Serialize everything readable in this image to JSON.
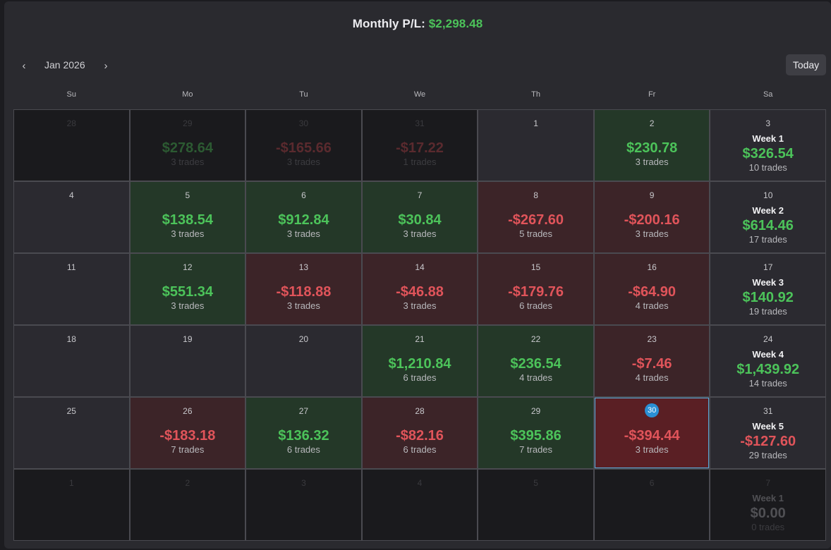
{
  "header": {
    "title_label": "Monthly P/L:",
    "title_amount": "$2,298.48"
  },
  "nav": {
    "month": "Jan 2026",
    "prev_icon": "‹",
    "next_icon": "›",
    "today_label": "Today"
  },
  "weekdays": [
    "Su",
    "Mo",
    "Tu",
    "We",
    "Th",
    "Fr",
    "Sa"
  ],
  "weeks": [
    {
      "days": [
        {
          "day": "28",
          "out": true,
          "amount": "",
          "trades": "",
          "tone": ""
        },
        {
          "day": "29",
          "out": true,
          "amount": "$278.64",
          "trades": "3 trades",
          "tone": "pos"
        },
        {
          "day": "30",
          "out": true,
          "amount": "-$165.66",
          "trades": "3 trades",
          "tone": "neg"
        },
        {
          "day": "31",
          "out": true,
          "amount": "-$17.22",
          "trades": "1 trades",
          "tone": "neg"
        },
        {
          "day": "1",
          "out": false,
          "amount": "",
          "trades": "",
          "tone": ""
        },
        {
          "day": "2",
          "out": false,
          "amount": "$230.78",
          "trades": "3 trades",
          "tone": "pos"
        }
      ],
      "summary": {
        "day": "3",
        "out": false,
        "week": "Week 1",
        "amount": "$326.54",
        "trades": "10 trades",
        "tone": "pos"
      }
    },
    {
      "days": [
        {
          "day": "4",
          "out": false,
          "amount": "",
          "trades": "",
          "tone": ""
        },
        {
          "day": "5",
          "out": false,
          "amount": "$138.54",
          "trades": "3 trades",
          "tone": "pos"
        },
        {
          "day": "6",
          "out": false,
          "amount": "$912.84",
          "trades": "3 trades",
          "tone": "pos"
        },
        {
          "day": "7",
          "out": false,
          "amount": "$30.84",
          "trades": "3 trades",
          "tone": "pos"
        },
        {
          "day": "8",
          "out": false,
          "amount": "-$267.60",
          "trades": "5 trades",
          "tone": "neg"
        },
        {
          "day": "9",
          "out": false,
          "amount": "-$200.16",
          "trades": "3 trades",
          "tone": "neg"
        }
      ],
      "summary": {
        "day": "10",
        "out": false,
        "week": "Week 2",
        "amount": "$614.46",
        "trades": "17 trades",
        "tone": "pos"
      }
    },
    {
      "days": [
        {
          "day": "11",
          "out": false,
          "amount": "",
          "trades": "",
          "tone": ""
        },
        {
          "day": "12",
          "out": false,
          "amount": "$551.34",
          "trades": "3 trades",
          "tone": "pos"
        },
        {
          "day": "13",
          "out": false,
          "amount": "-$118.88",
          "trades": "3 trades",
          "tone": "neg"
        },
        {
          "day": "14",
          "out": false,
          "amount": "-$46.88",
          "trades": "3 trades",
          "tone": "neg"
        },
        {
          "day": "15",
          "out": false,
          "amount": "-$179.76",
          "trades": "6 trades",
          "tone": "neg"
        },
        {
          "day": "16",
          "out": false,
          "amount": "-$64.90",
          "trades": "4 trades",
          "tone": "neg"
        }
      ],
      "summary": {
        "day": "17",
        "out": false,
        "week": "Week 3",
        "amount": "$140.92",
        "trades": "19 trades",
        "tone": "pos"
      }
    },
    {
      "days": [
        {
          "day": "18",
          "out": false,
          "amount": "",
          "trades": "",
          "tone": ""
        },
        {
          "day": "19",
          "out": false,
          "amount": "",
          "trades": "",
          "tone": ""
        },
        {
          "day": "20",
          "out": false,
          "amount": "",
          "trades": "",
          "tone": ""
        },
        {
          "day": "21",
          "out": false,
          "amount": "$1,210.84",
          "trades": "6 trades",
          "tone": "pos"
        },
        {
          "day": "22",
          "out": false,
          "amount": "$236.54",
          "trades": "4 trades",
          "tone": "pos"
        },
        {
          "day": "23",
          "out": false,
          "amount": "-$7.46",
          "trades": "4 trades",
          "tone": "neg"
        }
      ],
      "summary": {
        "day": "24",
        "out": false,
        "week": "Week 4",
        "amount": "$1,439.92",
        "trades": "14 trades",
        "tone": "pos"
      }
    },
    {
      "days": [
        {
          "day": "25",
          "out": false,
          "amount": "",
          "trades": "",
          "tone": ""
        },
        {
          "day": "26",
          "out": false,
          "amount": "-$183.18",
          "trades": "7 trades",
          "tone": "neg"
        },
        {
          "day": "27",
          "out": false,
          "amount": "$136.32",
          "trades": "6 trades",
          "tone": "pos"
        },
        {
          "day": "28",
          "out": false,
          "amount": "-$82.16",
          "trades": "6 trades",
          "tone": "neg"
        },
        {
          "day": "29",
          "out": false,
          "amount": "$395.86",
          "trades": "7 trades",
          "tone": "pos"
        },
        {
          "day": "30",
          "out": false,
          "amount": "-$394.44",
          "trades": "3 trades",
          "tone": "neg",
          "today": true
        }
      ],
      "summary": {
        "day": "31",
        "out": false,
        "week": "Week 5",
        "amount": "-$127.60",
        "trades": "29 trades",
        "tone": "neg"
      }
    },
    {
      "days": [
        {
          "day": "1",
          "out": true,
          "amount": "",
          "trades": "",
          "tone": ""
        },
        {
          "day": "2",
          "out": true,
          "amount": "",
          "trades": "",
          "tone": ""
        },
        {
          "day": "3",
          "out": true,
          "amount": "",
          "trades": "",
          "tone": ""
        },
        {
          "day": "4",
          "out": true,
          "amount": "",
          "trades": "",
          "tone": ""
        },
        {
          "day": "5",
          "out": true,
          "amount": "",
          "trades": "",
          "tone": ""
        },
        {
          "day": "6",
          "out": true,
          "amount": "",
          "trades": "",
          "tone": ""
        }
      ],
      "summary": {
        "day": "7",
        "out": true,
        "week": "Week 1",
        "amount": "$0.00",
        "trades": "0 trades",
        "tone": "zero"
      }
    }
  ]
}
